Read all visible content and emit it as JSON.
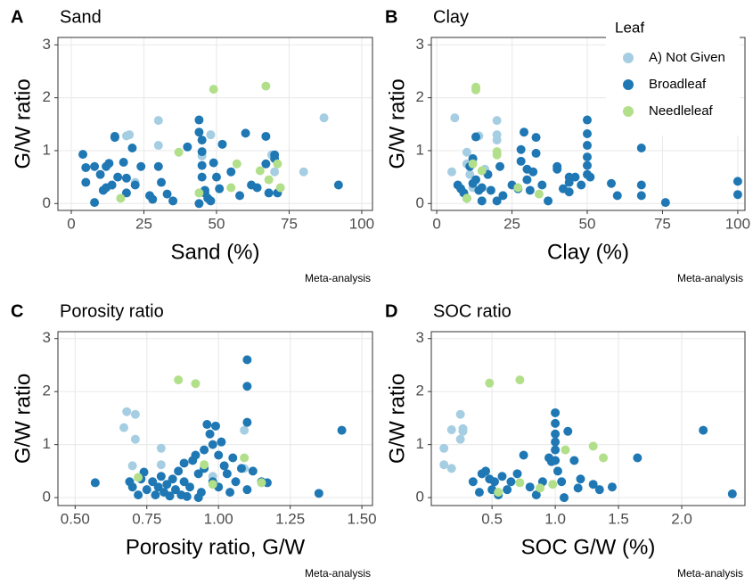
{
  "chart_data": [
    {
      "type": "scatter",
      "panel": "A",
      "title": "Sand",
      "xlabel": "Sand (%)",
      "ylabel": "G/W ratio",
      "caption": "Meta-analysis",
      "xlim": [
        -4.6,
        103.7
      ],
      "ylim": [
        -0.13,
        3.14
      ],
      "xticks": [
        0,
        25,
        50,
        75,
        100
      ],
      "yticks": [
        0,
        1,
        2,
        3
      ],
      "grid": true,
      "series": [
        {
          "color": "#a6cee3",
          "x": [
            20,
            19,
            30,
            30,
            87,
            80,
            69,
            70,
            22,
            48,
            45
          ],
          "y": [
            1.3,
            1.28,
            1.57,
            1.1,
            1.62,
            0.6,
            0.92,
            0.6,
            0.4,
            1.3,
            0.9
          ]
        },
        {
          "color": "#1f78b4",
          "x": [
            4,
            5,
            5,
            8,
            8,
            10,
            11,
            12,
            12,
            13,
            14,
            15,
            15,
            16,
            18,
            19,
            19,
            21,
            22,
            24,
            27,
            28,
            30,
            31,
            33,
            35,
            40,
            44,
            44,
            45,
            45,
            45,
            45,
            46,
            47,
            48,
            49,
            50,
            51,
            52,
            55,
            58,
            60,
            62,
            64,
            67,
            67,
            68,
            70,
            70,
            71,
            92,
            46,
            44
          ],
          "y": [
            0.93,
            0.68,
            0.4,
            0.7,
            0.02,
            0.55,
            0.25,
            0.3,
            0.7,
            0.76,
            0.35,
            1.25,
            1.27,
            0.5,
            0.78,
            0.48,
            0.2,
            1.05,
            0.35,
            0.7,
            0.15,
            0.08,
            0.7,
            0.4,
            0.18,
            0.05,
            1.07,
            1.58,
            1.35,
            1.2,
            0.98,
            0.72,
            0.5,
            0.25,
            0.1,
            0.05,
            0.77,
            0.5,
            0.28,
            1.12,
            0.6,
            0.15,
            1.33,
            0.35,
            0.3,
            1.27,
            0.75,
            0.2,
            0.92,
            0.85,
            0.2,
            0.35,
            0.2,
            0.0
          ]
        },
        {
          "color": "#b2df8a",
          "x": [
            17,
            37,
            49,
            67,
            57,
            55,
            65,
            71,
            72,
            44,
            68
          ],
          "y": [
            0.1,
            0.97,
            2.16,
            2.22,
            0.75,
            0.3,
            0.62,
            0.75,
            0.3,
            0.2,
            0.45
          ]
        }
      ]
    },
    {
      "type": "scatter",
      "panel": "B",
      "title": "Clay",
      "xlabel": "Clay (%)",
      "ylabel": "G/W ratio",
      "caption": "Meta-analysis",
      "xlim": [
        -1.8,
        102.4
      ],
      "ylim": [
        -0.13,
        3.14
      ],
      "xticks": [
        0,
        25,
        50,
        75,
        100
      ],
      "yticks": [
        0,
        1,
        2,
        3
      ],
      "grid": true,
      "legend": {
        "title": "Leaf",
        "position": "top-right"
      },
      "series": [
        {
          "name": "A) Not Given",
          "color": "#a6cee3",
          "x": [
            5,
            6,
            10,
            11,
            12,
            14,
            20,
            20,
            20,
            16,
            10
          ],
          "y": [
            0.6,
            1.62,
            0.97,
            0.55,
            0.3,
            1.28,
            1.57,
            1.3,
            1.2,
            0.65,
            0.75
          ]
        },
        {
          "name": "Broadleaf",
          "color": "#1f78b4",
          "x": [
            7,
            8,
            9,
            10,
            11,
            12,
            12,
            13,
            13,
            14,
            15,
            15,
            17,
            18,
            20,
            21,
            22,
            25,
            27,
            28,
            28,
            29,
            30,
            30,
            31,
            32,
            33,
            33,
            35,
            37,
            40,
            40,
            42,
            44,
            44,
            44,
            46,
            48,
            50,
            50,
            50,
            50,
            50,
            50,
            51,
            58,
            60,
            68,
            68,
            68,
            76,
            100,
            100
          ],
          "y": [
            0.35,
            0.28,
            0.2,
            0.1,
            0.7,
            0.85,
            0.38,
            1.26,
            0.45,
            0.25,
            0.3,
            0.05,
            0.55,
            0.25,
            0.05,
            0.7,
            0.15,
            0.35,
            0.28,
            1.02,
            0.8,
            1.35,
            0.65,
            0.45,
            0.25,
            0.6,
            1.25,
            0.95,
            0.35,
            0.05,
            0.7,
            0.65,
            0.28,
            0.5,
            0.4,
            0.22,
            0.5,
            0.35,
            1.58,
            1.32,
            1.1,
            0.88,
            0.72,
            0.55,
            0.5,
            0.38,
            0.15,
            1.05,
            0.35,
            0.15,
            0.02,
            0.42,
            0.17
          ]
        },
        {
          "name": "Needleleaf",
          "color": "#b2df8a",
          "x": [
            13,
            13,
            12,
            15,
            10,
            20,
            27,
            34,
            20
          ],
          "y": [
            2.2,
            2.15,
            0.75,
            0.62,
            0.1,
            0.98,
            0.3,
            0.18,
            0.92
          ]
        }
      ]
    },
    {
      "type": "scatter",
      "panel": "C",
      "title": "Porosity ratio",
      "xlabel": "Porosity ratio, G/W",
      "ylabel": "G/W ratio",
      "caption": "Meta-analysis",
      "xlim": [
        0.44,
        1.537
      ],
      "ylim": [
        -0.15,
        3.13
      ],
      "xticks": [
        {
          "value": 0.5,
          "label": "0.50"
        },
        0.75,
        {
          "value": 1,
          "label": "1.00"
        },
        1.25,
        {
          "value": 1.5,
          "label": "1.50"
        }
      ],
      "yticks": [
        0,
        1,
        2,
        3
      ],
      "grid": true,
      "series": [
        {
          "color": "#a6cee3",
          "x": [
            0.67,
            0.68,
            0.71,
            0.71,
            0.8,
            0.7,
            0.8,
            1.09,
            1.09,
            0.98
          ],
          "y": [
            1.32,
            1.62,
            1.57,
            1.1,
            0.93,
            0.6,
            0.62,
            1.27,
            0.55,
            0.4
          ]
        },
        {
          "color": "#1f78b4",
          "x": [
            0.57,
            0.69,
            0.7,
            0.72,
            0.73,
            0.74,
            0.75,
            0.77,
            0.78,
            0.79,
            0.8,
            0.81,
            0.82,
            0.83,
            0.84,
            0.85,
            0.86,
            0.87,
            0.88,
            0.88,
            0.9,
            0.91,
            0.92,
            0.93,
            0.94,
            0.95,
            0.95,
            0.96,
            0.97,
            0.98,
            0.98,
            0.99,
            1.0,
            1.0,
            1.01,
            1.02,
            1.03,
            1.04,
            1.05,
            1.06,
            1.08,
            1.1,
            1.1,
            1.1,
            1.1,
            1.12,
            1.15,
            1.17,
            1.35,
            1.43,
            0.93,
            0.89
          ],
          "y": [
            0.28,
            0.3,
            0.2,
            0.05,
            0.35,
            0.48,
            0.15,
            0.3,
            0.05,
            0.2,
            0.4,
            0.1,
            0.25,
            0.03,
            0.35,
            0.15,
            0.5,
            0.05,
            0.65,
            0.3,
            0.2,
            0.7,
            0.8,
            0.45,
            0.1,
            0.9,
            0.55,
            1.38,
            1.2,
            1.0,
            0.3,
            1.35,
            0.8,
            0.2,
            1.05,
            0.6,
            0.45,
            0.1,
            0.75,
            0.3,
            0.55,
            2.6,
            2.1,
            1.42,
            0.15,
            0.5,
            0.3,
            0.28,
            0.08,
            1.27,
            0.0,
            0.02
          ]
        },
        {
          "color": "#b2df8a",
          "x": [
            0.86,
            0.92,
            1.09,
            1.15,
            0.95,
            0.98,
            0.72
          ],
          "y": [
            2.22,
            2.15,
            0.75,
            0.28,
            0.62,
            0.25,
            0.38
          ]
        }
      ]
    },
    {
      "type": "scatter",
      "panel": "D",
      "title": "SOC ratio",
      "xlabel": "SOC G/W (%)",
      "ylabel": "G/W ratio",
      "caption": "Meta-analysis",
      "xlim": [
        0.02,
        2.5
      ],
      "ylim": [
        -0.15,
        3.13
      ],
      "xticks": [
        0.5,
        {
          "value": 1,
          "label": "1.0"
        },
        1.5,
        {
          "value": 2,
          "label": "2.0"
        }
      ],
      "yticks": [
        0,
        1,
        2,
        3
      ],
      "grid": true,
      "series": [
        {
          "color": "#a6cee3",
          "x": [
            0.12,
            0.12,
            0.18,
            0.18,
            0.25,
            0.25,
            0.27,
            0.27
          ],
          "y": [
            0.93,
            0.62,
            0.55,
            1.28,
            1.57,
            1.1,
            1.3,
            1.25
          ]
        },
        {
          "color": "#1f78b4",
          "x": [
            0.35,
            0.4,
            0.42,
            0.45,
            0.48,
            0.5,
            0.52,
            0.55,
            0.58,
            0.62,
            0.65,
            0.7,
            0.75,
            0.8,
            0.85,
            0.9,
            0.95,
            0.97,
            1.0,
            1.0,
            1.0,
            1.0,
            1.0,
            1.0,
            1.02,
            1.05,
            1.07,
            1.1,
            1.15,
            1.18,
            1.2,
            1.3,
            1.35,
            1.45,
            1.65,
            2.17,
            2.4
          ],
          "y": [
            0.3,
            0.1,
            0.45,
            0.5,
            0.35,
            0.15,
            0.3,
            0.05,
            0.4,
            0.15,
            0.3,
            0.45,
            0.8,
            0.2,
            0.05,
            0.3,
            0.75,
            0.68,
            1.6,
            1.4,
            1.2,
            1.05,
            0.9,
            0.7,
            0.5,
            0.3,
            0.0,
            1.25,
            0.7,
            0.18,
            0.35,
            0.25,
            0.15,
            0.2,
            0.75,
            1.27,
            0.07
          ]
        },
        {
          "color": "#b2df8a",
          "x": [
            0.48,
            0.72,
            0.55,
            0.72,
            0.88,
            0.98,
            1.08,
            1.3,
            1.38
          ],
          "y": [
            2.16,
            2.22,
            0.1,
            0.28,
            0.18,
            0.25,
            0.9,
            0.97,
            0.75
          ]
        }
      ]
    }
  ]
}
